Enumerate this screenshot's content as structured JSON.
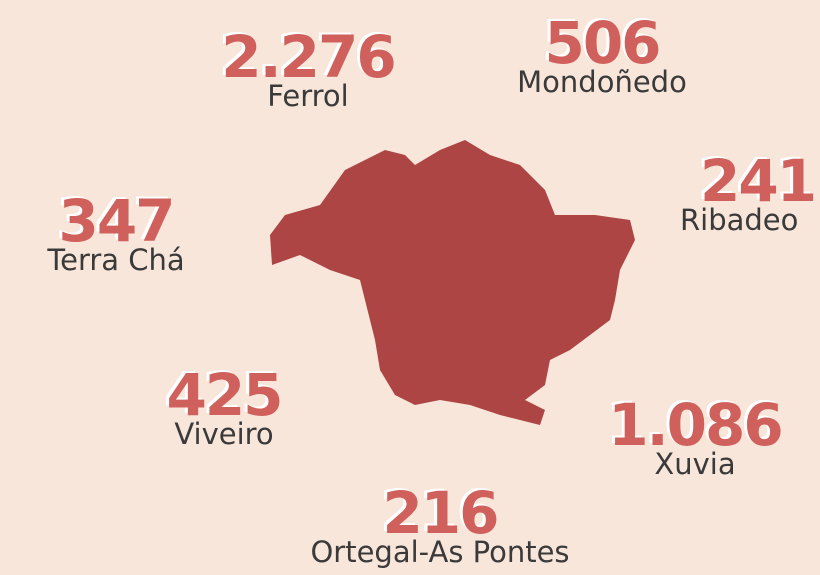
{
  "regions": [
    {
      "value": "2.276",
      "name": "Ferrol"
    },
    {
      "value": "506",
      "name": "Mondoñedo"
    },
    {
      "value": "241",
      "name": "Ribadeo"
    },
    {
      "value": "347",
      "name": "Terra Chá"
    },
    {
      "value": "425",
      "name": "Viveiro"
    },
    {
      "value": "1.086",
      "name": "Xuvia"
    },
    {
      "value": "216",
      "name": "Ortegal-As Pontes"
    }
  ]
}
